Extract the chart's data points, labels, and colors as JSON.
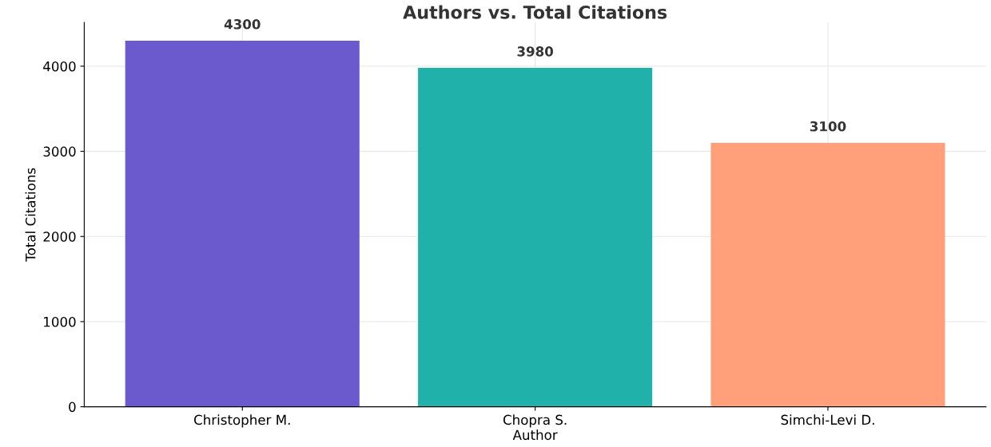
{
  "chart_data": {
    "type": "bar",
    "title": "Authors vs. Total Citations",
    "xlabel": "Author",
    "ylabel": "Total Citations",
    "categories": [
      "Christopher M.",
      "Chopra S.",
      "Simchi-Levi D."
    ],
    "values": [
      4300,
      3980,
      3100
    ],
    "colors": [
      "#6a5acd",
      "#20b2aa",
      "#ffa07a"
    ],
    "ylim": [
      0,
      4515
    ],
    "yticks": [
      0,
      1000,
      2000,
      3000,
      4000
    ],
    "grid": true,
    "data_labels": true
  }
}
